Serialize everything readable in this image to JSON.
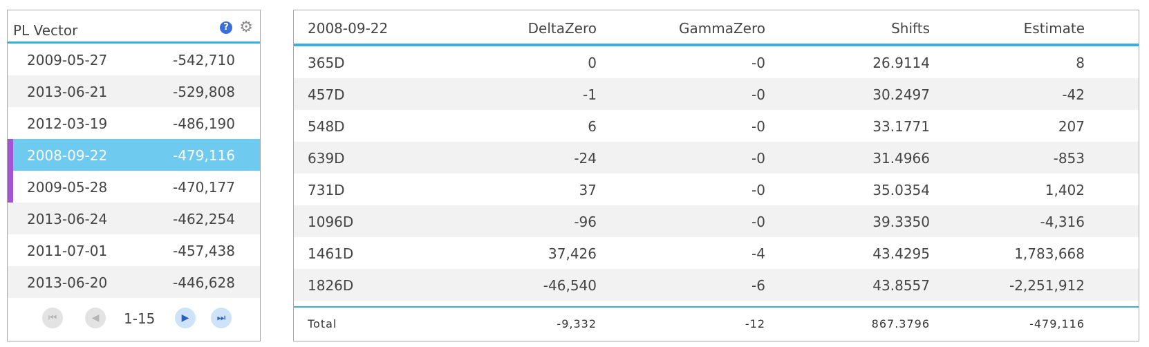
{
  "left_panel": {
    "title": "PL Vector",
    "help_icon_glyph": "?",
    "gear_icon_glyph": "⚙",
    "rows": [
      {
        "date": "2009-05-27",
        "value": "-542,710",
        "selected": false,
        "marked": false
      },
      {
        "date": "2013-06-21",
        "value": "-529,808",
        "selected": false,
        "marked": false
      },
      {
        "date": "2012-03-19",
        "value": "-486,190",
        "selected": false,
        "marked": false
      },
      {
        "date": "2008-09-22",
        "value": "-479,116",
        "selected": true,
        "marked": true
      },
      {
        "date": "2009-05-28",
        "value": "-470,177",
        "selected": false,
        "marked": true
      },
      {
        "date": "2013-06-24",
        "value": "-462,254",
        "selected": false,
        "marked": false
      },
      {
        "date": "2011-07-01",
        "value": "-457,438",
        "selected": false,
        "marked": false
      },
      {
        "date": "2013-06-20",
        "value": "-446,628",
        "selected": false,
        "marked": false
      }
    ],
    "pager": {
      "range": "1-15",
      "first_glyph": "⏮",
      "prev_glyph": "◀",
      "next_glyph": "▶",
      "last_glyph": "⏭"
    }
  },
  "table": {
    "headers": [
      "2008-09-22",
      "DeltaZero",
      "GammaZero",
      "Shifts",
      "Estimate"
    ],
    "rows": [
      [
        "365D",
        "0",
        "-0",
        "26.9114",
        "8"
      ],
      [
        "457D",
        "-1",
        "-0",
        "30.2497",
        "-42"
      ],
      [
        "548D",
        "6",
        "-0",
        "33.1771",
        "207"
      ],
      [
        "639D",
        "-24",
        "-0",
        "31.4966",
        "-853"
      ],
      [
        "731D",
        "37",
        "-0",
        "35.0354",
        "1,402"
      ],
      [
        "1096D",
        "-96",
        "-0",
        "39.3350",
        "-4,316"
      ],
      [
        "1461D",
        "37,426",
        "-4",
        "43.4295",
        "1,783,668"
      ],
      [
        "1826D",
        "-46,540",
        "-6",
        "43.8557",
        "-2,251,912"
      ]
    ],
    "total": [
      "Total",
      "-9,332",
      "-12",
      "867.3796",
      "-479,116"
    ]
  },
  "colors": {
    "accent_blue": "#3aaee0",
    "selected_row": "#6ecaee",
    "marker_purple": "#a254d4",
    "alt_row": "#f2f2f2"
  }
}
